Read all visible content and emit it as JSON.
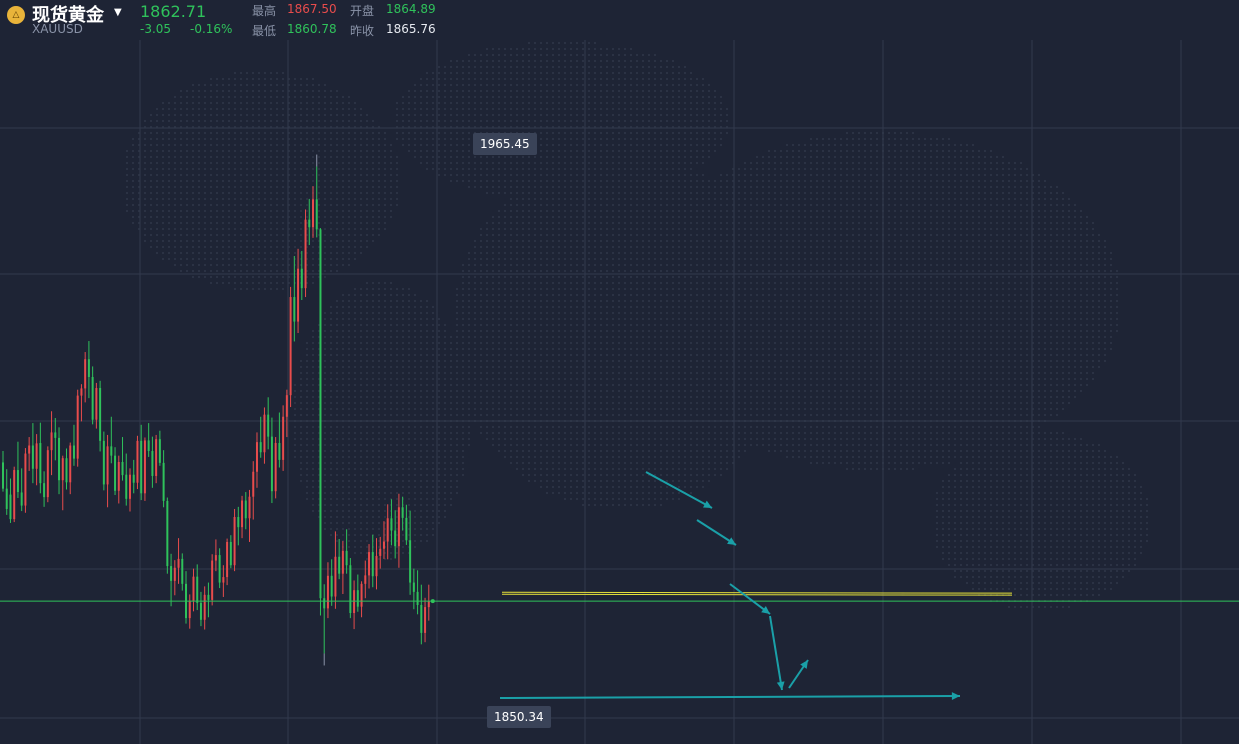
{
  "header": {
    "logo_text": "△",
    "title": "现货黄金",
    "symbol": "XAUUSD",
    "price": "1862.71",
    "change": "-3.05",
    "change_pct": "-0.16%",
    "high_label": "最高",
    "high": "1867.50",
    "open_label": "开盘",
    "open": "1864.89",
    "low_label": "最低",
    "low": "1860.78",
    "prev_close_label": "昨收",
    "prev_close": "1865.76"
  },
  "markers": {
    "max_label": "1965.45",
    "min_label": "1850.34"
  },
  "colors": {
    "background": "#1e2435",
    "up": "#e84c4c",
    "down": "#2fc25b",
    "grid": "#323a4d",
    "current_price_line": "#2fc25b",
    "support_line": "#e6e23a",
    "annotation": "#1aa0a8"
  },
  "chart_data": {
    "type": "candlestick",
    "unit": "USD/oz",
    "ylim": [
      1839,
      1980
    ],
    "max_point": {
      "index": 84,
      "value": 1965.45
    },
    "min_point": {
      "index": 86,
      "value": 1850.34
    },
    "current_price": 1862.71,
    "grid": true,
    "candles": [
      [
        1895.5,
        1898.2,
        1888.6,
        1889.3
      ],
      [
        1889.3,
        1893.9,
        1883.1,
        1884.5
      ],
      [
        1887.9,
        1891.7,
        1881.2,
        1882.1
      ],
      [
        1882.1,
        1894.5,
        1881.4,
        1893.7
      ],
      [
        1893.7,
        1900.4,
        1887.1,
        1888.5
      ],
      [
        1888.4,
        1894.1,
        1884.0,
        1885.3
      ],
      [
        1885.3,
        1898.9,
        1883.6,
        1897.6
      ],
      [
        1897.6,
        1901.5,
        1893.5,
        1899.5
      ],
      [
        1899.5,
        1904.8,
        1890.6,
        1894.0
      ],
      [
        1894.0,
        1902.2,
        1890.1,
        1900.0
      ],
      [
        1900.1,
        1904.9,
        1888.2,
        1890.6
      ],
      [
        1890.6,
        1893.4,
        1885.0,
        1887.3
      ],
      [
        1887.3,
        1899.3,
        1886.1,
        1898.4
      ],
      [
        1898.4,
        1907.6,
        1892.5,
        1902.6
      ],
      [
        1902.6,
        1906.0,
        1896.0,
        1901.3
      ],
      [
        1901.3,
        1903.8,
        1888.0,
        1891.3
      ],
      [
        1891.3,
        1897.1,
        1884.2,
        1896.5
      ],
      [
        1896.5,
        1898.8,
        1889.1,
        1890.8
      ],
      [
        1890.8,
        1900.2,
        1888.0,
        1899.5
      ],
      [
        1899.5,
        1904.4,
        1894.7,
        1896.4
      ],
      [
        1896.4,
        1912.7,
        1894.5,
        1911.3
      ],
      [
        1911.3,
        1914.0,
        1905.2,
        1913.0
      ],
      [
        1913.0,
        1921.6,
        1909.7,
        1919.9
      ],
      [
        1919.9,
        1924.2,
        1910.7,
        1915.7
      ],
      [
        1915.7,
        1918.2,
        1904.5,
        1905.6
      ],
      [
        1905.6,
        1914.3,
        1903.5,
        1913.1
      ],
      [
        1913.1,
        1914.8,
        1898.1,
        1900.6
      ],
      [
        1900.6,
        1902.8,
        1888.9,
        1890.3
      ],
      [
        1890.3,
        1902.0,
        1884.9,
        1899.3
      ],
      [
        1899.3,
        1906.3,
        1895.3,
        1897.1
      ],
      [
        1897.1,
        1899.1,
        1887.8,
        1888.8
      ],
      [
        1888.8,
        1897.1,
        1885.8,
        1895.6
      ],
      [
        1895.6,
        1901.5,
        1891.2,
        1892.5
      ],
      [
        1892.6,
        1897.6,
        1885.3,
        1886.9
      ],
      [
        1886.9,
        1894.1,
        1883.9,
        1892.6
      ],
      [
        1892.6,
        1896.1,
        1888.2,
        1890.7
      ],
      [
        1890.7,
        1901.8,
        1889.2,
        1900.6
      ],
      [
        1900.6,
        1904.4,
        1886.6,
        1888.2
      ],
      [
        1888.2,
        1901.4,
        1886.4,
        1900.7
      ],
      [
        1900.7,
        1904.8,
        1896.8,
        1898.2
      ],
      [
        1898.2,
        1901.6,
        1889.5,
        1892.3
      ],
      [
        1892.3,
        1902.0,
        1890.6,
        1901.0
      ],
      [
        1901.0,
        1903.0,
        1894.7,
        1895.4
      ],
      [
        1895.4,
        1898.4,
        1884.9,
        1886.4
      ],
      [
        1886.4,
        1887.2,
        1869.2,
        1871.0
      ],
      [
        1871.0,
        1873.9,
        1861.5,
        1867.5
      ],
      [
        1867.5,
        1872.4,
        1864.1,
        1870.6
      ],
      [
        1870.6,
        1877.6,
        1866.8,
        1872.7
      ],
      [
        1872.7,
        1874.0,
        1865.2,
        1866.8
      ],
      [
        1866.8,
        1869.8,
        1857.4,
        1858.7
      ],
      [
        1858.7,
        1864.3,
        1856.2,
        1862.8
      ],
      [
        1862.8,
        1870.4,
        1860.3,
        1868.5
      ],
      [
        1868.5,
        1871.4,
        1860.6,
        1862.3
      ],
      [
        1862.3,
        1864.9,
        1856.8,
        1858.3
      ],
      [
        1858.3,
        1866.2,
        1856.0,
        1864.2
      ],
      [
        1864.2,
        1867.1,
        1858.9,
        1863.0
      ],
      [
        1863.0,
        1873.8,
        1861.7,
        1872.3
      ],
      [
        1872.3,
        1877.3,
        1869.8,
        1873.6
      ],
      [
        1873.6,
        1875.2,
        1865.8,
        1867.1
      ],
      [
        1867.1,
        1871.2,
        1863.7,
        1868.4
      ],
      [
        1868.4,
        1877.5,
        1866.5,
        1876.7
      ],
      [
        1876.7,
        1878.3,
        1870.5,
        1871.2
      ],
      [
        1871.2,
        1884.5,
        1869.8,
        1882.6
      ],
      [
        1882.6,
        1885.0,
        1875.9,
        1880.2
      ],
      [
        1880.2,
        1887.6,
        1877.6,
        1886.5
      ],
      [
        1886.5,
        1888.5,
        1879.7,
        1882.3
      ],
      [
        1882.3,
        1889.0,
        1876.7,
        1887.4
      ],
      [
        1887.4,
        1895.8,
        1882.0,
        1893.3
      ],
      [
        1893.3,
        1902.6,
        1889.5,
        1900.3
      ],
      [
        1900.3,
        1906.3,
        1896.6,
        1897.9
      ],
      [
        1897.9,
        1908.5,
        1895.2,
        1906.8
      ],
      [
        1906.8,
        1910.9,
        1898.6,
        1901.6
      ],
      [
        1901.6,
        1906.1,
        1885.9,
        1888.7
      ],
      [
        1888.7,
        1901.5,
        1887.0,
        1900.1
      ],
      [
        1900.1,
        1907.3,
        1894.3,
        1896.1
      ],
      [
        1896.1,
        1909.0,
        1893.5,
        1906.3
      ],
      [
        1906.3,
        1912.7,
        1901.5,
        1911.4
      ],
      [
        1911.4,
        1937.0,
        1908.6,
        1934.6
      ],
      [
        1934.6,
        1944.3,
        1924.1,
        1928.8
      ],
      [
        1928.8,
        1946.0,
        1926.1,
        1941.3
      ],
      [
        1941.3,
        1945.5,
        1933.9,
        1936.7
      ],
      [
        1936.7,
        1955.3,
        1934.6,
        1952.9
      ],
      [
        1952.9,
        1957.8,
        1946.9,
        1951.1
      ],
      [
        1951.1,
        1960.8,
        1948.6,
        1957.7
      ],
      [
        1957.7,
        1965.45,
        1948.7,
        1950.6
      ],
      [
        1950.6,
        1950.9,
        1859.3,
        1863.4
      ],
      [
        1863.4,
        1866.7,
        1850.34,
        1861.0
      ],
      [
        1861.0,
        1871.9,
        1858.7,
        1868.7
      ],
      [
        1868.7,
        1872.6,
        1861.6,
        1863.8
      ],
      [
        1863.8,
        1879.2,
        1860.9,
        1873.2
      ],
      [
        1873.2,
        1877.4,
        1867.9,
        1869.2
      ],
      [
        1869.2,
        1876.9,
        1864.4,
        1874.6
      ],
      [
        1874.6,
        1879.7,
        1869.2,
        1871.2
      ],
      [
        1871.2,
        1872.9,
        1858.7,
        1859.9
      ],
      [
        1859.9,
        1867.6,
        1856.1,
        1865.3
      ],
      [
        1865.3,
        1869.0,
        1860.2,
        1861.4
      ],
      [
        1861.4,
        1867.4,
        1858.9,
        1866.8
      ],
      [
        1866.8,
        1872.3,
        1863.4,
        1868.8
      ],
      [
        1868.8,
        1876.2,
        1865.7,
        1874.3
      ],
      [
        1874.3,
        1878.4,
        1866.0,
        1868.6
      ],
      [
        1868.6,
        1877.6,
        1865.5,
        1873.4
      ],
      [
        1873.4,
        1877.9,
        1870.4,
        1875.1
      ],
      [
        1875.1,
        1881.6,
        1872.7,
        1876.8
      ],
      [
        1876.8,
        1885.6,
        1872.6,
        1882.3
      ],
      [
        1882.3,
        1886.8,
        1875.9,
        1879.4
      ],
      [
        1879.4,
        1884.2,
        1872.8,
        1875.7
      ],
      [
        1875.7,
        1888.1,
        1870.6,
        1884.9
      ],
      [
        1884.9,
        1887.4,
        1879.4,
        1882.4
      ],
      [
        1882.4,
        1885.5,
        1876.0,
        1877.1
      ],
      [
        1877.1,
        1884.1,
        1864.2,
        1867.1
      ],
      [
        1867.1,
        1870.4,
        1860.8,
        1864.9
      ],
      [
        1864.9,
        1870.0,
        1859.6,
        1861.8
      ],
      [
        1861.8,
        1866.6,
        1852.5,
        1855.2
      ],
      [
        1855.2,
        1863.5,
        1853.0,
        1861.3
      ],
      [
        1861.3,
        1866.6,
        1858.1,
        1862.71
      ]
    ]
  }
}
